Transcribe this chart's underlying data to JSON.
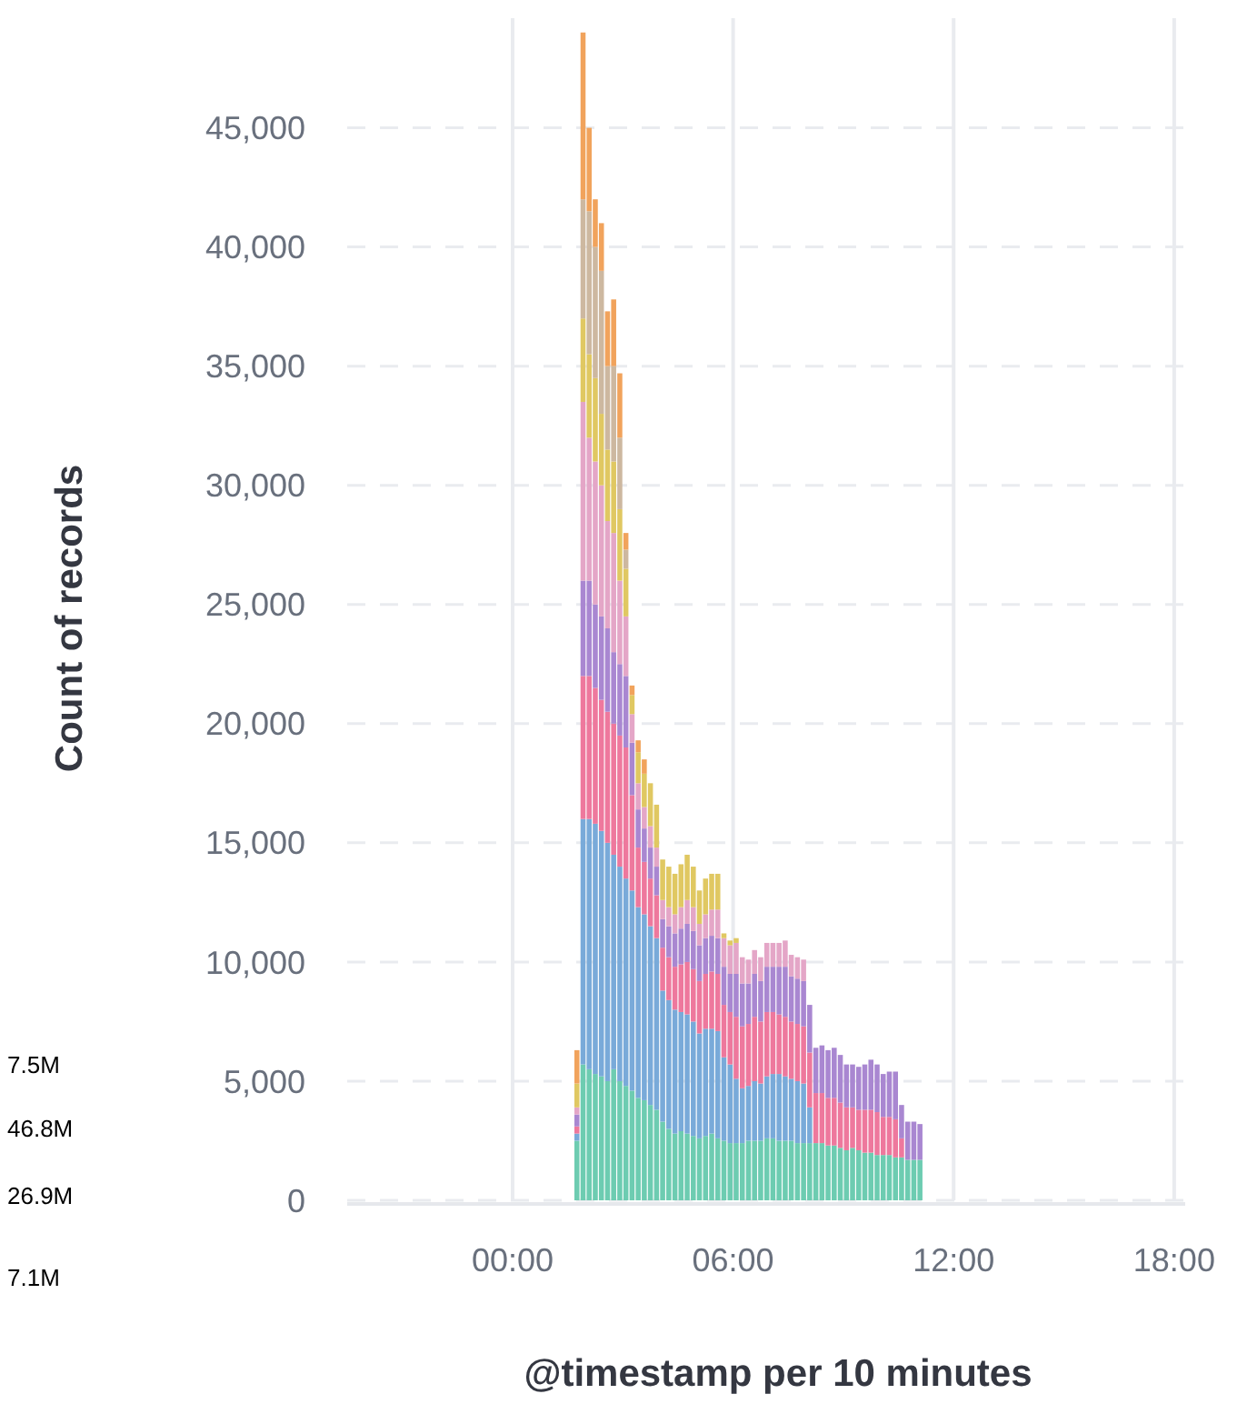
{
  "chart_data": {
    "type": "bar",
    "stacked": true,
    "xlabel": "@timestamp per 10 minutes",
    "ylabel": "Count of records",
    "x": [
      1.75,
      1.917,
      2.083,
      2.25,
      2.417,
      2.583,
      2.75,
      2.917,
      3.083,
      3.25,
      3.417,
      3.583,
      3.75,
      3.917,
      4.083,
      4.25,
      4.417,
      4.583,
      4.75,
      4.917,
      5.083,
      5.25,
      5.417,
      5.583,
      5.75,
      5.917,
      6.083,
      6.25,
      6.417,
      6.583,
      6.75,
      6.917,
      7.083,
      7.25,
      7.417,
      7.583,
      7.75,
      7.917,
      8.083,
      8.25,
      8.417,
      8.583,
      8.75,
      8.917,
      9.083,
      9.25,
      9.417,
      9.583,
      9.75,
      9.917,
      10.083,
      10.25,
      10.417,
      10.583,
      10.75,
      10.917,
      11.083
    ],
    "xlim": [
      -4.5,
      18.3
    ],
    "xticks": [
      {
        "value": 0,
        "label": "00:00"
      },
      {
        "value": 6,
        "label": "06:00"
      },
      {
        "value": 12,
        "label": "12:00"
      },
      {
        "value": 18,
        "label": "18:00"
      }
    ],
    "ylim": [
      0,
      49600
    ],
    "yticks": [
      {
        "value": 0,
        "label": "0"
      },
      {
        "value": 5000,
        "label": "5,000"
      },
      {
        "value": 10000,
        "label": "10,000"
      },
      {
        "value": 15000,
        "label": "15,000"
      },
      {
        "value": 20000,
        "label": "20,000"
      },
      {
        "value": 25000,
        "label": "25,000"
      },
      {
        "value": 30000,
        "label": "30,000"
      },
      {
        "value": 35000,
        "label": "35,000"
      },
      {
        "value": 40000,
        "label": "40,000"
      },
      {
        "value": 45000,
        "label": "45,000"
      }
    ],
    "grid": true,
    "annotations": [
      "7.5M",
      "46.8M",
      "26.9M",
      "7.1M"
    ],
    "series": [
      {
        "color": "#6dccb1",
        "values": [
          2500,
          5700,
          5500,
          5300,
          5200,
          5000,
          5500,
          5000,
          4800,
          4600,
          4300,
          4200,
          4000,
          3800,
          3300,
          3000,
          2800,
          2900,
          2800,
          2700,
          2600,
          2700,
          2800,
          2600,
          2500,
          2400,
          2400,
          2400,
          2500,
          2500,
          2500,
          2600,
          2600,
          2500,
          2500,
          2500,
          2400,
          2400,
          2400,
          2400,
          2400,
          2300,
          2300,
          2200,
          2100,
          2200,
          2100,
          2000,
          2000,
          1900,
          1900,
          1900,
          1800,
          1800,
          1700,
          1700,
          1700
        ]
      },
      {
        "color": "#79aad9",
        "values": [
          300,
          10300,
          10500,
          10500,
          10300,
          10000,
          9000,
          9000,
          8700,
          8400,
          8000,
          7800,
          7500,
          7200,
          5500,
          5400,
          5200,
          5000,
          5000,
          4800,
          4400,
          4500,
          4400,
          4500,
          3500,
          3300,
          2700,
          2300,
          2300,
          2500,
          2400,
          2600,
          2700,
          2800,
          2700,
          2600,
          2600,
          2500,
          1500,
          0,
          0,
          0,
          0,
          0,
          0,
          0,
          0,
          0,
          0,
          0,
          0,
          0,
          0,
          0,
          0,
          0,
          0
        ]
      },
      {
        "color": "#ee789d",
        "values": [
          300,
          6000,
          6000,
          5700,
          5500,
          5500,
          5500,
          5500,
          5500,
          4000,
          2500,
          2200,
          2000,
          1800,
          1800,
          1800,
          1800,
          2000,
          2200,
          2200,
          2200,
          2300,
          2400,
          2400,
          2200,
          2200,
          2600,
          2600,
          2600,
          2700,
          2600,
          2700,
          2600,
          2500,
          2500,
          2400,
          2400,
          2400,
          2300,
          2100,
          2100,
          2000,
          2000,
          1900,
          1800,
          1700,
          1700,
          1800,
          1800,
          1800,
          1600,
          1600,
          1600,
          800,
          0,
          0,
          0
        ]
      },
      {
        "color": "#a987d1",
        "values": [
          500,
          4000,
          4000,
          3500,
          3500,
          3500,
          3000,
          3000,
          3000,
          2200,
          1600,
          1400,
          1300,
          1200,
          1200,
          1300,
          1400,
          1500,
          1600,
          1600,
          1500,
          1500,
          1500,
          1500,
          1600,
          1600,
          1800,
          1800,
          1700,
          1800,
          1700,
          1900,
          1900,
          2000,
          2100,
          1900,
          1900,
          1900,
          2000,
          1900,
          2000,
          2000,
          2100,
          2000,
          1800,
          1800,
          1800,
          1900,
          2100,
          2000,
          1800,
          1900,
          2000,
          1400,
          1600,
          1600,
          1500
        ]
      },
      {
        "color": "#e4a6c7",
        "values": [
          300,
          7500,
          6000,
          6000,
          5500,
          4500,
          5000,
          3500,
          2500,
          1200,
          1100,
          900,
          900,
          800,
          800,
          800,
          800,
          900,
          1000,
          1000,
          900,
          1000,
          1100,
          1200,
          1200,
          1200,
          1300,
          1100,
          1000,
          1000,
          1000,
          1000,
          1000,
          1000,
          1100,
          900,
          900,
          900,
          0,
          0,
          0,
          0,
          0,
          0,
          0,
          0,
          0,
          0,
          0,
          0,
          0,
          0,
          0,
          0,
          0,
          0,
          0
        ]
      },
      {
        "color": "#e0c862",
        "values": [
          1000,
          3500,
          3500,
          3500,
          3000,
          3000,
          3000,
          3000,
          2000,
          800,
          1300,
          1400,
          1800,
          1800,
          1700,
          1700,
          1700,
          1800,
          1900,
          1700,
          1400,
          1500,
          1500,
          1500,
          200,
          200,
          200,
          0,
          0,
          0,
          0,
          0,
          0,
          0,
          0,
          0,
          0,
          0,
          0,
          0,
          0,
          0,
          0,
          0,
          0,
          0,
          0,
          0,
          0,
          0,
          0,
          0,
          0,
          0,
          0,
          0,
          0
        ]
      },
      {
        "color": "#cdb8a0",
        "values": [
          0,
          5000,
          6000,
          5500,
          6000,
          3500,
          4000,
          3000,
          800,
          0,
          0,
          0,
          0,
          0,
          0,
          0,
          0,
          0,
          0,
          0,
          0,
          0,
          0,
          0,
          0,
          0,
          0,
          0,
          0,
          0,
          0,
          0,
          0,
          0,
          0,
          0,
          0,
          0,
          0,
          0,
          0,
          0,
          0,
          0,
          0,
          0,
          0,
          0,
          0,
          0,
          0,
          0,
          0,
          0,
          0,
          0,
          0
        ]
      },
      {
        "color": "#f1a35c",
        "values": [
          1400,
          7000,
          3500,
          2000,
          2000,
          2300,
          2800,
          2700,
          700,
          400,
          500,
          600,
          0,
          0,
          0,
          0,
          0,
          0,
          0,
          0,
          0,
          0,
          0,
          0,
          0,
          0,
          0,
          0,
          0,
          0,
          0,
          0,
          0,
          0,
          0,
          0,
          0,
          0,
          0,
          0,
          0,
          0,
          0,
          0,
          0,
          0,
          0,
          0,
          0,
          0,
          0,
          0,
          0,
          0,
          0,
          0,
          0
        ]
      }
    ]
  }
}
